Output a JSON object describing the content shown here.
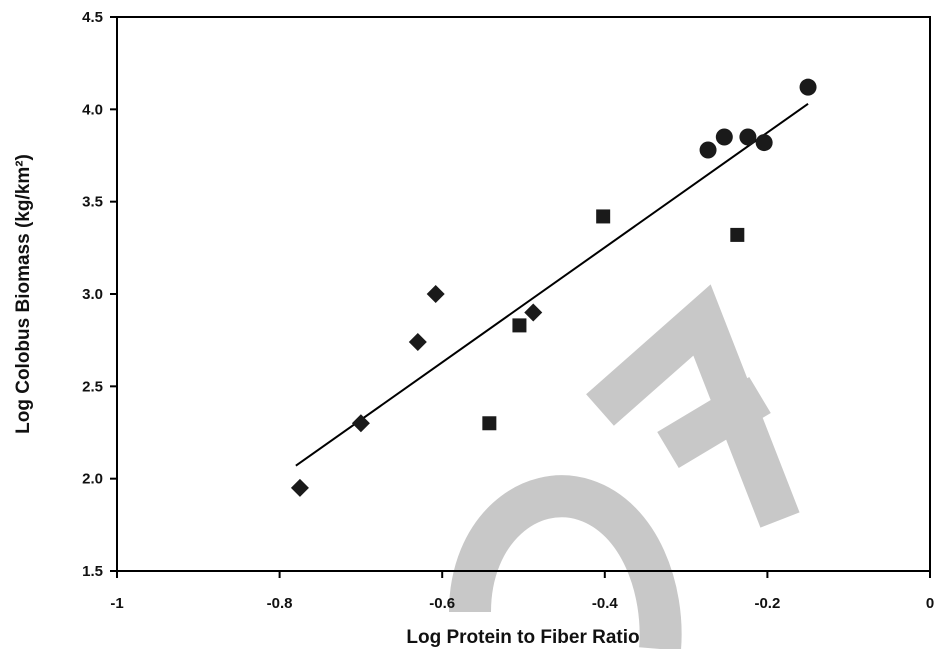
{
  "colors": {
    "marker": "#1a1a1a",
    "axis": "#000000",
    "watermark": "#c8c8c8",
    "background": "#ffffff"
  },
  "chart_data": {
    "type": "scatter",
    "title": "",
    "xlabel": "Log Protein to Fiber Ratio",
    "ylabel": "Log Colobus Biomass (kg/km²)",
    "xlim": [
      -1,
      0
    ],
    "ylim": [
      1.5,
      4.5
    ],
    "xticks": [
      -1,
      -0.8,
      -0.6,
      -0.4,
      -0.2,
      0
    ],
    "xtick_labels": [
      "-1",
      "-0.8",
      "-0.6",
      "-0.4",
      "-0.2",
      "0"
    ],
    "yticks": [
      1.5,
      2.0,
      2.5,
      3.0,
      3.5,
      4.0,
      4.5
    ],
    "ytick_labels": [
      "1.5",
      "2.0",
      "2.5",
      "3.0",
      "3.5",
      "4.0",
      "4.5"
    ],
    "grid": false,
    "legend": "none",
    "series": [
      {
        "marker": "diamond",
        "x": [
          -0.775,
          -0.7,
          -0.63,
          -0.608,
          -0.488
        ],
        "y": [
          1.95,
          2.3,
          2.74,
          3.0,
          2.9
        ]
      },
      {
        "marker": "square",
        "x": [
          -0.542,
          -0.505,
          -0.402,
          -0.237
        ],
        "y": [
          2.3,
          2.83,
          3.42,
          3.32
        ]
      },
      {
        "marker": "circle",
        "x": [
          -0.273,
          -0.253,
          -0.224,
          -0.204,
          -0.15
        ],
        "y": [
          3.78,
          3.85,
          3.85,
          3.82,
          4.12
        ]
      }
    ],
    "trendline": {
      "x": [
        -0.78,
        -0.15
      ],
      "y": [
        2.07,
        4.03
      ]
    }
  }
}
